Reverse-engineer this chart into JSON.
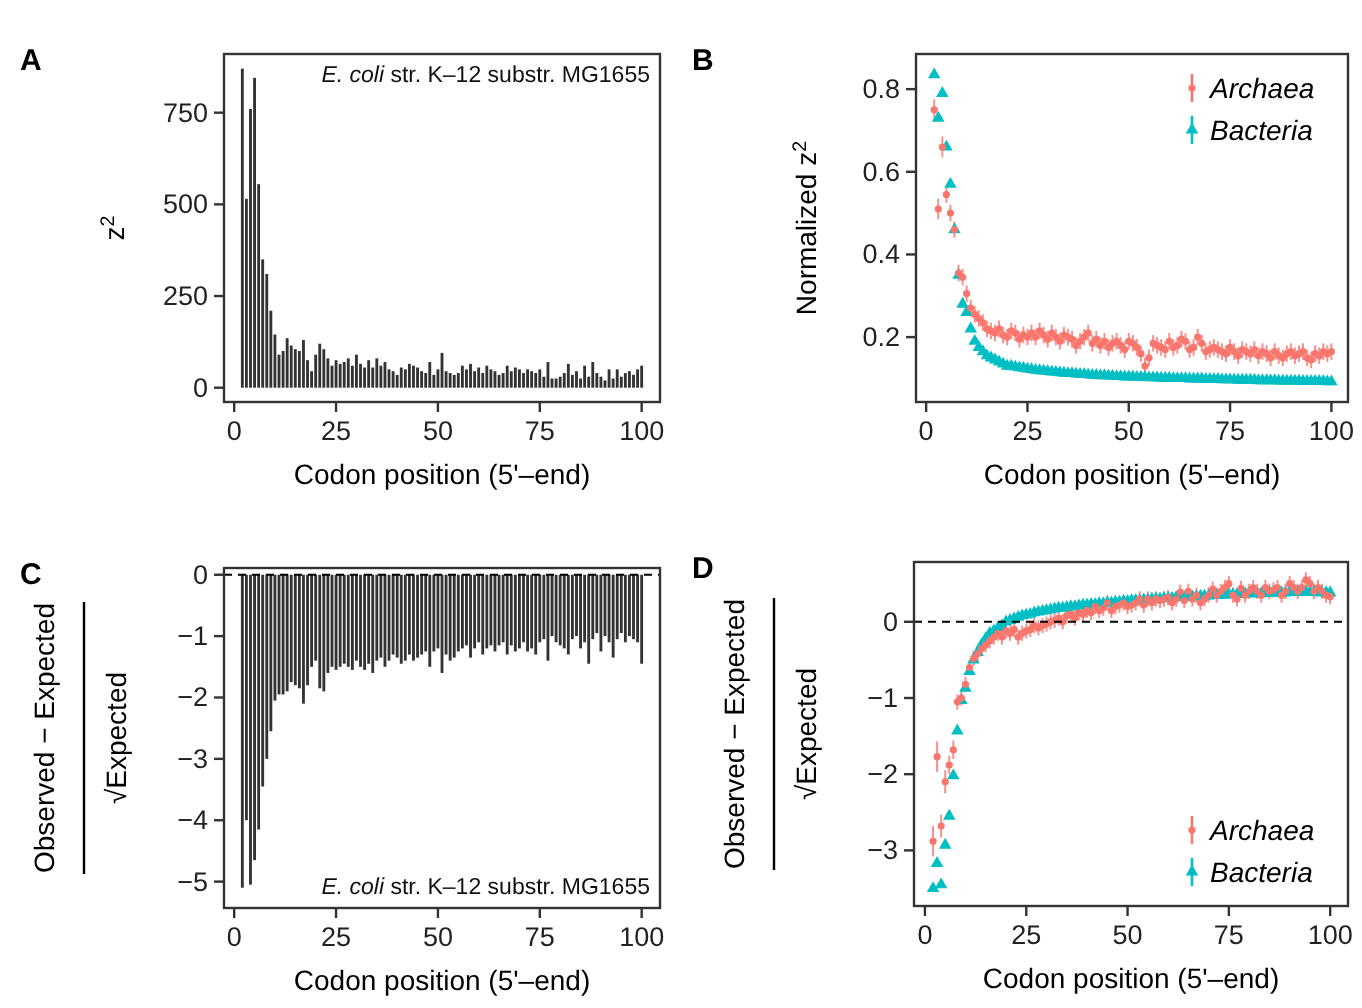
{
  "chart_data": [
    {
      "type": "bar",
      "title": "A",
      "xlabel": "Codon position (5'–end)",
      "ylabel": "z$^{2}$",
      "annotations": [
        "E. coli str. K–12 substr. MG1655"
      ],
      "color": "#333333",
      "xlim": [
        -2.5,
        104.5
      ],
      "xticks": [
        0,
        25,
        50,
        75,
        100
      ],
      "ylim": [
        -39,
        910
      ],
      "yticks": [
        0,
        250,
        500,
        750
      ],
      "grid": false,
      "x": [
        2,
        3,
        4,
        5,
        6,
        7,
        8,
        9,
        10,
        11,
        12,
        13,
        14,
        15,
        16,
        17,
        18,
        19,
        20,
        21,
        22,
        23,
        24,
        25,
        26,
        27,
        28,
        29,
        30,
        31,
        32,
        33,
        34,
        35,
        36,
        37,
        38,
        39,
        40,
        41,
        42,
        43,
        44,
        45,
        46,
        47,
        48,
        49,
        50,
        51,
        52,
        53,
        54,
        55,
        56,
        57,
        58,
        59,
        60,
        61,
        62,
        63,
        64,
        65,
        66,
        67,
        68,
        69,
        70,
        71,
        72,
        73,
        74,
        75,
        76,
        77,
        78,
        79,
        80,
        81,
        82,
        83,
        84,
        85,
        86,
        87,
        88,
        89,
        90,
        91,
        92,
        93,
        94,
        95,
        96,
        97,
        98,
        99,
        100
      ],
      "values": [
        870,
        515,
        760,
        845,
        555,
        350,
        310,
        210,
        145,
        90,
        100,
        135,
        115,
        105,
        100,
        130,
        75,
        45,
        90,
        120,
        105,
        80,
        60,
        75,
        65,
        70,
        80,
        60,
        90,
        65,
        55,
        75,
        55,
        80,
        60,
        70,
        50,
        45,
        35,
        55,
        50,
        65,
        60,
        55,
        45,
        40,
        70,
        35,
        50,
        95,
        45,
        40,
        35,
        40,
        60,
        50,
        65,
        45,
        55,
        40,
        60,
        50,
        45,
        35,
        40,
        60,
        45,
        55,
        50,
        40,
        50,
        45,
        40,
        50,
        30,
        70,
        25,
        25,
        30,
        40,
        65,
        35,
        45,
        25,
        60,
        30,
        70,
        40,
        30,
        20,
        50,
        25,
        50,
        30,
        40,
        45,
        35,
        50,
        60
      ]
    },
    {
      "type": "scatter",
      "title": "B",
      "xlabel": "Codon position (5'–end)",
      "ylabel": "Normalized z$^{2}$",
      "xlim": [
        -2.5,
        104.1
      ],
      "xticks": [
        0,
        25,
        50,
        75,
        100
      ],
      "ylim": [
        0.043,
        0.885
      ],
      "yticks": [
        0.2,
        0.4,
        0.6,
        0.8
      ],
      "grid": false,
      "legend": "top right",
      "x": [
        2,
        3,
        4,
        5,
        6,
        7,
        8,
        9,
        10,
        11,
        12,
        13,
        14,
        15,
        16,
        17,
        18,
        19,
        20,
        21,
        22,
        23,
        24,
        25,
        26,
        27,
        28,
        29,
        30,
        31,
        32,
        33,
        34,
        35,
        36,
        37,
        38,
        39,
        40,
        41,
        42,
        43,
        44,
        45,
        46,
        47,
        48,
        49,
        50,
        51,
        52,
        53,
        54,
        55,
        56,
        57,
        58,
        59,
        60,
        61,
        62,
        63,
        64,
        65,
        66,
        67,
        68,
        69,
        70,
        71,
        72,
        73,
        74,
        75,
        76,
        77,
        78,
        79,
        80,
        81,
        82,
        83,
        84,
        85,
        86,
        87,
        88,
        89,
        90,
        91,
        92,
        93,
        94,
        95,
        96,
        97,
        98,
        99,
        100
      ],
      "series": [
        {
          "name": "Archaea",
          "color": "#f8766d",
          "marker": "circle",
          "values": [
            0.75,
            0.51,
            0.66,
            0.545,
            0.5,
            0.46,
            0.355,
            0.345,
            0.305,
            0.27,
            0.255,
            0.245,
            0.235,
            0.22,
            0.215,
            0.21,
            0.22,
            0.205,
            0.2,
            0.215,
            0.21,
            0.195,
            0.205,
            0.2,
            0.21,
            0.2,
            0.215,
            0.205,
            0.195,
            0.21,
            0.2,
            0.19,
            0.205,
            0.2,
            0.195,
            0.18,
            0.19,
            0.2,
            0.21,
            0.185,
            0.195,
            0.18,
            0.19,
            0.175,
            0.185,
            0.19,
            0.18,
            0.17,
            0.19,
            0.185,
            0.175,
            0.16,
            0.13,
            0.15,
            0.185,
            0.18,
            0.175,
            0.17,
            0.19,
            0.175,
            0.18,
            0.195,
            0.19,
            0.17,
            0.175,
            0.2,
            0.185,
            0.165,
            0.17,
            0.175,
            0.17,
            0.165,
            0.16,
            0.175,
            0.165,
            0.155,
            0.17,
            0.165,
            0.16,
            0.17,
            0.155,
            0.165,
            0.16,
            0.15,
            0.165,
            0.155,
            0.15,
            0.16,
            0.165,
            0.155,
            0.16,
            0.165,
            0.15,
            0.145,
            0.16,
            0.155,
            0.165,
            0.16,
            0.165
          ],
          "errors": [
            0.025,
            0.025,
            0.025,
            0.02,
            0.02,
            0.02,
            0.02,
            0.02,
            0.02,
            0.02,
            0.02,
            0.02,
            0.02,
            0.02,
            0.02,
            0.02,
            0.02,
            0.02,
            0.02,
            0.02,
            0.02,
            0.02,
            0.02,
            0.02,
            0.02,
            0.02,
            0.02,
            0.02,
            0.02,
            0.02,
            0.02,
            0.02,
            0.02,
            0.02,
            0.02,
            0.02,
            0.02,
            0.02,
            0.02,
            0.02,
            0.02,
            0.02,
            0.02,
            0.02,
            0.02,
            0.02,
            0.02,
            0.02,
            0.02,
            0.02,
            0.02,
            0.02,
            0.02,
            0.02,
            0.02,
            0.02,
            0.02,
            0.02,
            0.02,
            0.02,
            0.02,
            0.02,
            0.02,
            0.02,
            0.02,
            0.02,
            0.02,
            0.02,
            0.02,
            0.02,
            0.02,
            0.02,
            0.02,
            0.02,
            0.02,
            0.02,
            0.02,
            0.02,
            0.02,
            0.02,
            0.02,
            0.02,
            0.02,
            0.02,
            0.02,
            0.02,
            0.02,
            0.02,
            0.02,
            0.02,
            0.02,
            0.02,
            0.02,
            0.02,
            0.02,
            0.02,
            0.02,
            0.02,
            0.02
          ]
        },
        {
          "name": "Bacteria",
          "color": "#00bfc4",
          "marker": "triangle",
          "values": [
            0.835,
            0.73,
            0.79,
            0.66,
            0.57,
            0.46,
            0.35,
            0.28,
            0.26,
            0.22,
            0.19,
            0.175,
            0.165,
            0.155,
            0.15,
            0.145,
            0.14,
            0.135,
            0.13,
            0.13,
            0.128,
            0.126,
            0.125,
            0.123,
            0.122,
            0.12,
            0.119,
            0.118,
            0.117,
            0.116,
            0.115,
            0.114,
            0.113,
            0.112,
            0.112,
            0.111,
            0.11,
            0.11,
            0.109,
            0.108,
            0.108,
            0.107,
            0.107,
            0.106,
            0.106,
            0.105,
            0.105,
            0.104,
            0.104,
            0.104,
            0.103,
            0.103,
            0.103,
            0.102,
            0.102,
            0.102,
            0.101,
            0.101,
            0.101,
            0.1,
            0.1,
            0.1,
            0.1,
            0.099,
            0.099,
            0.099,
            0.099,
            0.098,
            0.098,
            0.098,
            0.098,
            0.097,
            0.097,
            0.097,
            0.097,
            0.096,
            0.096,
            0.096,
            0.096,
            0.096,
            0.095,
            0.095,
            0.095,
            0.095,
            0.095,
            0.094,
            0.094,
            0.094,
            0.094,
            0.094,
            0.094,
            0.093,
            0.093,
            0.093,
            0.093,
            0.093,
            0.093,
            0.092,
            0.092
          ]
        }
      ]
    },
    {
      "type": "bar",
      "title": "C",
      "xlabel": "Codon position (5'–end)",
      "ylabel": "Observed − Expected\n√Expected",
      "annotations": [
        "E. coli str. K–12 substr. MG1655"
      ],
      "color": "#333333",
      "xlim": [
        -2.5,
        104.5
      ],
      "xticks": [
        0,
        25,
        50,
        75,
        100
      ],
      "ylim": [
        -5.43,
        0.11
      ],
      "yticks": [
        {
          "value": -5,
          "label": "−5"
        },
        {
          "value": -4,
          "label": "−4"
        },
        {
          "value": -3,
          "label": "−3"
        },
        {
          "value": -2,
          "label": "−2"
        },
        {
          "value": -1,
          "label": "−1"
        },
        0
      ],
      "grid": false,
      "ref_lines": [
        {
          "axis": "y",
          "value": 0,
          "color": "#000000",
          "line_style": "dashed"
        }
      ],
      "x": [
        2,
        3,
        4,
        5,
        6,
        7,
        8,
        9,
        10,
        11,
        12,
        13,
        14,
        15,
        16,
        17,
        18,
        19,
        20,
        21,
        22,
        23,
        24,
        25,
        26,
        27,
        28,
        29,
        30,
        31,
        32,
        33,
        34,
        35,
        36,
        37,
        38,
        39,
        40,
        41,
        42,
        43,
        44,
        45,
        46,
        47,
        48,
        49,
        50,
        51,
        52,
        53,
        54,
        55,
        56,
        57,
        58,
        59,
        60,
        61,
        62,
        63,
        64,
        65,
        66,
        67,
        68,
        69,
        70,
        71,
        72,
        73,
        74,
        75,
        76,
        77,
        78,
        79,
        80,
        81,
        82,
        83,
        84,
        85,
        86,
        87,
        88,
        89,
        90,
        91,
        92,
        93,
        94,
        95,
        96,
        97,
        98,
        99,
        100
      ],
      "values": [
        -5.1,
        -4.0,
        -5.05,
        -4.65,
        -4.15,
        -3.45,
        -3.0,
        -2.55,
        -2.05,
        -1.95,
        -1.95,
        -1.9,
        -1.75,
        -1.8,
        -1.85,
        -2.1,
        -1.8,
        -1.5,
        -1.4,
        -1.85,
        -1.9,
        -1.6,
        -1.5,
        -1.55,
        -1.5,
        -1.45,
        -1.5,
        -1.55,
        -1.4,
        -1.5,
        -1.55,
        -1.45,
        -1.6,
        -1.4,
        -1.35,
        -1.5,
        -1.4,
        -1.3,
        -1.35,
        -1.45,
        -1.4,
        -1.3,
        -1.4,
        -1.35,
        -1.3,
        -1.25,
        -1.5,
        -1.25,
        -1.2,
        -1.6,
        -1.3,
        -1.4,
        -1.35,
        -1.25,
        -1.2,
        -1.15,
        -1.35,
        -1.2,
        -1.1,
        -1.3,
        -1.2,
        -1.15,
        -1.25,
        -1.15,
        -1.1,
        -1.3,
        -1.15,
        -1.25,
        -1.2,
        -1.1,
        -1.25,
        -1.2,
        -1.3,
        -1.1,
        -1.05,
        -1.4,
        -1.0,
        -1.1,
        -1.15,
        -1.2,
        -1.3,
        -1.05,
        -1.0,
        -1.2,
        -1.1,
        -1.45,
        -1.05,
        -0.95,
        -1.25,
        -1.0,
        -1.1,
        -1.35,
        -1.05,
        -0.95,
        -1.1,
        -1.0,
        -1.05,
        -1.1,
        -1.45
      ]
    },
    {
      "type": "scatter",
      "title": "D",
      "xlabel": "Codon position (5'–end)",
      "ylabel": "Observed − Expected\n√Expected",
      "xlim": [
        -2.7,
        104.4
      ],
      "xticks": [
        0,
        25,
        50,
        75,
        100
      ],
      "ylim": [
        -3.73,
        0.785
      ],
      "yticks": [
        {
          "value": -3,
          "label": "−3"
        },
        {
          "value": -2,
          "label": "−2"
        },
        {
          "value": -1,
          "label": "−1"
        },
        0
      ],
      "grid": false,
      "legend": "bottom right",
      "ref_lines": [
        {
          "axis": "y",
          "value": 0,
          "color": "#000000",
          "line_style": "dashed"
        }
      ],
      "x": [
        2,
        3,
        4,
        5,
        6,
        7,
        8,
        9,
        10,
        11,
        12,
        13,
        14,
        15,
        16,
        17,
        18,
        19,
        20,
        21,
        22,
        23,
        24,
        25,
        26,
        27,
        28,
        29,
        30,
        31,
        32,
        33,
        34,
        35,
        36,
        37,
        38,
        39,
        40,
        41,
        42,
        43,
        44,
        45,
        46,
        47,
        48,
        49,
        50,
        51,
        52,
        53,
        54,
        55,
        56,
        57,
        58,
        59,
        60,
        61,
        62,
        63,
        64,
        65,
        66,
        67,
        68,
        69,
        70,
        71,
        72,
        73,
        74,
        75,
        76,
        77,
        78,
        79,
        80,
        81,
        82,
        83,
        84,
        85,
        86,
        87,
        88,
        89,
        90,
        91,
        92,
        93,
        94,
        95,
        96,
        97,
        98,
        99,
        100
      ],
      "series": [
        {
          "name": "Archaea",
          "color": "#f8766d",
          "marker": "circle",
          "values": [
            -2.88,
            -1.77,
            -2.68,
            -2.1,
            -1.88,
            -1.68,
            -1.05,
            -1.0,
            -0.82,
            -0.6,
            -0.48,
            -0.42,
            -0.35,
            -0.3,
            -0.25,
            -0.2,
            -0.15,
            -0.2,
            -0.12,
            -0.15,
            -0.1,
            -0.2,
            -0.15,
            -0.12,
            -0.1,
            -0.05,
            -0.08,
            -0.05,
            -0.03,
            0.0,
            0.02,
            0.05,
            0.0,
            0.08,
            0.1,
            0.05,
            0.12,
            0.1,
            0.15,
            0.12,
            0.2,
            0.15,
            0.18,
            0.25,
            0.15,
            0.2,
            0.22,
            0.25,
            0.2,
            0.22,
            0.25,
            0.3,
            0.22,
            0.3,
            0.25,
            0.3,
            0.28,
            0.3,
            0.32,
            0.25,
            0.3,
            0.39,
            0.28,
            0.4,
            0.3,
            0.35,
            0.25,
            0.3,
            0.35,
            0.43,
            0.35,
            0.4,
            0.45,
            0.5,
            0.35,
            0.3,
            0.44,
            0.35,
            0.4,
            0.45,
            0.4,
            0.35,
            0.45,
            0.4,
            0.42,
            0.45,
            0.35,
            0.4,
            0.5,
            0.45,
            0.4,
            0.45,
            0.55,
            0.5,
            0.4,
            0.45,
            0.4,
            0.35,
            0.33
          ],
          "errors": [
            0.2,
            0.2,
            0.15,
            0.15,
            0.12,
            0.12,
            0.1,
            0.1,
            0.1,
            0.1,
            0.1,
            0.1,
            0.1,
            0.1,
            0.1,
            0.1,
            0.1,
            0.1,
            0.1,
            0.1,
            0.1,
            0.1,
            0.1,
            0.1,
            0.1,
            0.1,
            0.1,
            0.1,
            0.1,
            0.1,
            0.1,
            0.1,
            0.1,
            0.1,
            0.1,
            0.1,
            0.1,
            0.1,
            0.1,
            0.1,
            0.1,
            0.1,
            0.1,
            0.1,
            0.1,
            0.1,
            0.1,
            0.1,
            0.1,
            0.1,
            0.1,
            0.1,
            0.1,
            0.1,
            0.1,
            0.1,
            0.1,
            0.1,
            0.1,
            0.1,
            0.1,
            0.1,
            0.1,
            0.1,
            0.1,
            0.1,
            0.1,
            0.1,
            0.1,
            0.1,
            0.1,
            0.1,
            0.1,
            0.1,
            0.1,
            0.1,
            0.1,
            0.1,
            0.1,
            0.1,
            0.1,
            0.1,
            0.1,
            0.1,
            0.1,
            0.1,
            0.1,
            0.1,
            0.1,
            0.1,
            0.1,
            0.1,
            0.1,
            0.1,
            0.1,
            0.1,
            0.1,
            0.1,
            0.1
          ]
        },
        {
          "name": "Bacteria",
          "color": "#00bfc4",
          "marker": "triangle",
          "values": [
            -3.5,
            -3.17,
            -3.45,
            -2.93,
            -2.55,
            -2.02,
            -1.43,
            -1.03,
            -0.87,
            -0.65,
            -0.5,
            -0.4,
            -0.3,
            -0.22,
            -0.15,
            -0.12,
            -0.08,
            -0.05,
            0.0,
            0.02,
            0.04,
            0.06,
            0.08,
            0.09,
            0.1,
            0.12,
            0.13,
            0.14,
            0.15,
            0.16,
            0.17,
            0.18,
            0.18,
            0.19,
            0.2,
            0.2,
            0.21,
            0.22,
            0.22,
            0.23,
            0.23,
            0.24,
            0.24,
            0.25,
            0.25,
            0.26,
            0.26,
            0.27,
            0.27,
            0.28,
            0.28,
            0.28,
            0.29,
            0.29,
            0.3,
            0.3,
            0.3,
            0.31,
            0.31,
            0.31,
            0.32,
            0.32,
            0.32,
            0.33,
            0.33,
            0.33,
            0.34,
            0.34,
            0.34,
            0.35,
            0.35,
            0.35,
            0.35,
            0.36,
            0.36,
            0.36,
            0.36,
            0.37,
            0.37,
            0.37,
            0.37,
            0.37,
            0.38,
            0.38,
            0.38,
            0.38,
            0.38,
            0.38,
            0.39,
            0.39,
            0.39,
            0.39,
            0.39,
            0.39,
            0.39,
            0.39,
            0.38,
            0.38,
            0.38
          ]
        }
      ]
    }
  ]
}
